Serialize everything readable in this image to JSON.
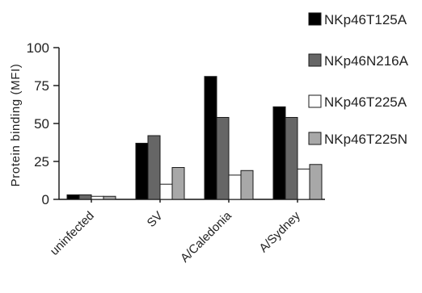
{
  "chart_data": {
    "type": "bar",
    "categories": [
      "uninfected",
      "SV",
      "A/Caledonia",
      "A/Sydney"
    ],
    "series": [
      {
        "name": "NKp46T125A",
        "values": [
          3,
          37,
          81,
          61
        ],
        "color": "#000000"
      },
      {
        "name": "NKp46N216A",
        "values": [
          3,
          42,
          54,
          54
        ],
        "color": "#666666"
      },
      {
        "name": "NKp46T225A",
        "values": [
          2,
          10,
          16,
          20
        ],
        "color": "#ffffff"
      },
      {
        "name": "NKp46T225N",
        "values": [
          2,
          21,
          19,
          23
        ],
        "color": "#a8a8a8"
      }
    ],
    "yticks": [
      0,
      25,
      50,
      75,
      100
    ],
    "ylim": [
      0,
      100
    ],
    "ylabel": "Protein binding (MFI)",
    "xlabel": "",
    "title": "",
    "legend_position": "top-right",
    "grid": false
  }
}
